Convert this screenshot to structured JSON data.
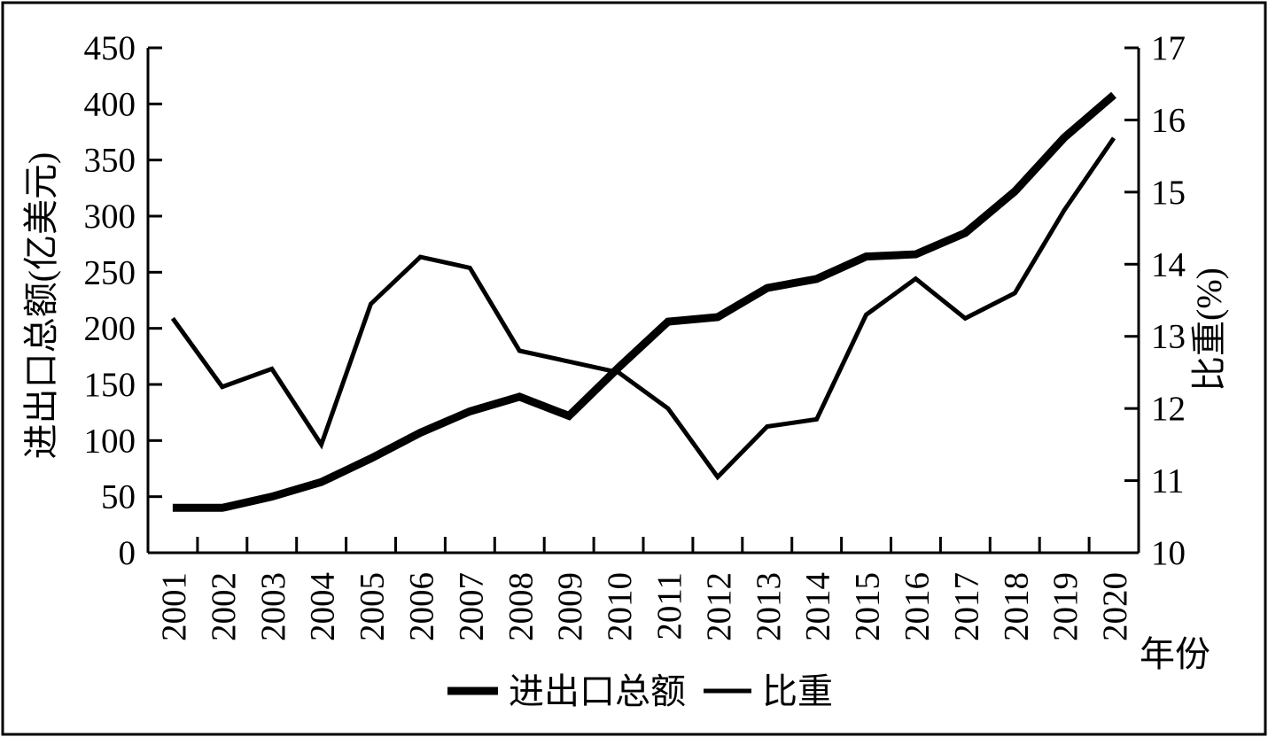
{
  "chart_data": {
    "type": "line",
    "title": "",
    "categories": [
      "2001",
      "2002",
      "2003",
      "2004",
      "2005",
      "2006",
      "2007",
      "2008",
      "2009",
      "2010",
      "2011",
      "2012",
      "2013",
      "2014",
      "2015",
      "2016",
      "2017",
      "2018",
      "2019",
      "2020"
    ],
    "series": [
      {
        "name": "进出口总额",
        "axis": "left",
        "line_width": 9,
        "values": [
          40,
          40,
          50,
          63,
          84,
          107,
          126,
          139,
          122,
          165,
          206,
          210,
          236,
          244,
          264,
          266,
          285,
          322,
          370,
          408
        ]
      },
      {
        "name": "比重",
        "axis": "right",
        "line_width": 5,
        "values": [
          13.25,
          12.3,
          12.55,
          11.5,
          13.45,
          14.1,
          13.95,
          12.8,
          12.65,
          12.5,
          12.0,
          11.05,
          11.75,
          11.85,
          13.3,
          13.8,
          13.25,
          13.6,
          14.75,
          15.75
        ]
      }
    ],
    "left_axis": {
      "label": "进出口总额(亿美元)",
      "min": 0,
      "max": 450,
      "step": 50,
      "ticks": [
        0,
        50,
        100,
        150,
        200,
        250,
        300,
        350,
        400,
        450
      ]
    },
    "right_axis": {
      "label": "比重(%)",
      "min": 10,
      "max": 17,
      "step": 1,
      "ticks": [
        10,
        11,
        12,
        13,
        14,
        15,
        16,
        17
      ]
    },
    "x_axis": {
      "label": "年份"
    },
    "legend": {
      "entries": [
        "进出口总额",
        "比重"
      ],
      "position": "bottom-center"
    },
    "style": {
      "line_color": "#000000",
      "background": "#ffffff",
      "grid": false,
      "frame_border": "#000000"
    }
  }
}
